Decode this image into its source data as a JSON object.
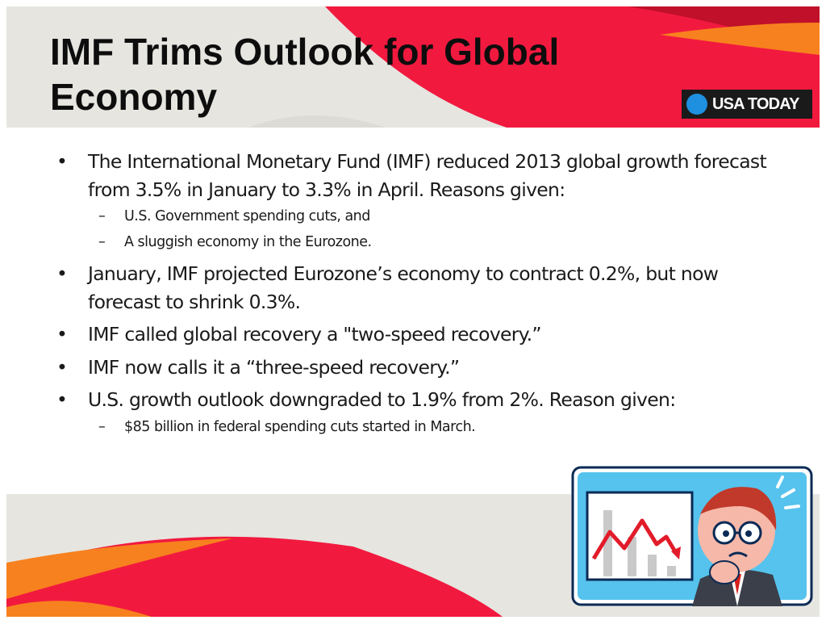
{
  "slide": {
    "title": "IMF Trims Outlook for Global Economy",
    "logo_text": "USA TODAY",
    "colors": {
      "red": "#f2193f",
      "orange": "#f7811e",
      "band_gray": "#e6e5e0",
      "dark_red": "#c0102a"
    }
  },
  "bullets": [
    {
      "text": "The International Monetary Fund (IMF) reduced 2013 global growth forecast from 3.5% in January to 3.3% in April. Reasons given:",
      "subs": [
        "U.S. Government spending cuts,  and",
        "A sluggish economy in the Eurozone."
      ]
    },
    {
      "text": "January, IMF projected Eurozone’s economy to contract 0.2%, but now forecast to shrink 0.3%.",
      "subs": []
    },
    {
      "text": "IMF called global recovery a \"two-speed recovery.”",
      "subs": []
    },
    {
      "text": "IMF now calls it a “three-speed recovery.”",
      "subs": []
    },
    {
      "text": "U.S. growth outlook downgraded to 1.9% from 2%.  Reason given:",
      "subs": [
        "$85 billion in federal spending cuts started in March."
      ]
    }
  ],
  "marks": {
    "bullet": "•",
    "dash": "–"
  },
  "illustration": {
    "icon": "worried-businessman-falling-chart-icon"
  }
}
